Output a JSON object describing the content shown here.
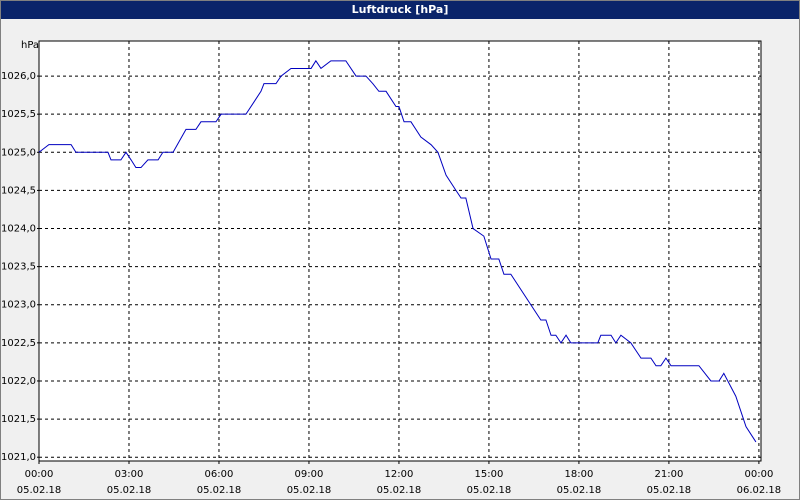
{
  "chart_data": {
    "type": "line",
    "title": "Luftdruck [hPa]",
    "y_label": "hPa",
    "x": [
      0,
      0.33,
      1.07,
      1.23,
      2.3,
      2.4,
      2.73,
      2.9,
      3.07,
      3.23,
      3.4,
      3.63,
      3.97,
      4.13,
      4.47,
      4.9,
      5.23,
      5.4,
      5.9,
      6.07,
      6.9,
      7.4,
      7.5,
      7.9,
      8.07,
      8.4,
      9.07,
      9.23,
      9.4,
      9.73,
      10.23,
      10.57,
      10.9,
      11.13,
      11.33,
      11.57,
      11.9,
      12,
      12.17,
      12.4,
      12.73,
      13.07,
      13.3,
      13.57,
      13.9,
      14.07,
      14.23,
      14.47,
      14.83,
      15.07,
      15.33,
      15.5,
      15.73,
      16.73,
      16.9,
      17.07,
      17.23,
      17.4,
      17.57,
      17.73,
      18.63,
      18.73,
      19.07,
      19.23,
      19.4,
      19.73,
      20.07,
      20.4,
      20.57,
      20.73,
      20.9,
      21.07,
      22,
      22.4,
      22.67,
      22.83,
      23.23,
      23.57,
      23.9
    ],
    "series": [
      {
        "name": "Luftdruck",
        "color": "#0000c0",
        "values": [
          1025.0,
          1025.1,
          1025.1,
          1025.0,
          1025.0,
          1024.9,
          1024.9,
          1025.0,
          1024.9,
          1024.8,
          1024.8,
          1024.9,
          1024.9,
          1025.0,
          1025.0,
          1025.3,
          1025.3,
          1025.4,
          1025.4,
          1025.5,
          1025.5,
          1025.8,
          1025.9,
          1025.9,
          1026.0,
          1026.1,
          1026.1,
          1026.2,
          1026.1,
          1026.2,
          1026.2,
          1026.0,
          1026.0,
          1025.9,
          1025.8,
          1025.8,
          1025.6,
          1025.6,
          1025.4,
          1025.4,
          1025.2,
          1025.1,
          1025.0,
          1024.7,
          1024.5,
          1024.4,
          1024.4,
          1024.0,
          1023.9,
          1023.6,
          1023.6,
          1023.4,
          1023.4,
          1022.8,
          1022.8,
          1022.6,
          1022.6,
          1022.5,
          1022.6,
          1022.5,
          1022.5,
          1022.6,
          1022.6,
          1022.5,
          1022.6,
          1022.5,
          1022.3,
          1022.3,
          1022.2,
          1022.2,
          1022.3,
          1022.2,
          1022.2,
          1022.0,
          1022.0,
          1022.1,
          1021.8,
          1021.4,
          1021.2
        ]
      }
    ],
    "xlim": [
      0,
      24.07
    ],
    "xticks": [
      {
        "value": 0,
        "label": "00:00"
      },
      {
        "value": 3,
        "label": "03:00"
      },
      {
        "value": 6,
        "label": "06:00"
      },
      {
        "value": 9,
        "label": "09:00"
      },
      {
        "value": 12,
        "label": "12:00"
      },
      {
        "value": 15,
        "label": "15:00"
      },
      {
        "value": 18,
        "label": "18:00"
      },
      {
        "value": 21,
        "label": "21:00"
      },
      {
        "value": 24,
        "label": "00:00"
      }
    ],
    "xtick_dates": [
      "05.02.18",
      "05.02.18",
      "05.02.18",
      "05.02.18",
      "05.02.18",
      "05.02.18",
      "05.02.18",
      "05.02.18",
      "06.02.18"
    ],
    "ylim": [
      1020.95,
      1026.46
    ],
    "yticks": [
      {
        "value": 1021,
        "label": "1021,0"
      },
      {
        "value": 1021.5,
        "label": "1021,5"
      },
      {
        "value": 1022,
        "label": "1022,0"
      },
      {
        "value": 1022.5,
        "label": "1022,5"
      },
      {
        "value": 1023,
        "label": "1023,0"
      },
      {
        "value": 1023.5,
        "label": "1023,5"
      },
      {
        "value": 1024,
        "label": "1024,0"
      },
      {
        "value": 1024.5,
        "label": "1024,5"
      },
      {
        "value": 1025,
        "label": "1025,0"
      },
      {
        "value": 1025.5,
        "label": "1025,5"
      },
      {
        "value": 1026,
        "label": "1026,0"
      }
    ],
    "grid": true
  }
}
